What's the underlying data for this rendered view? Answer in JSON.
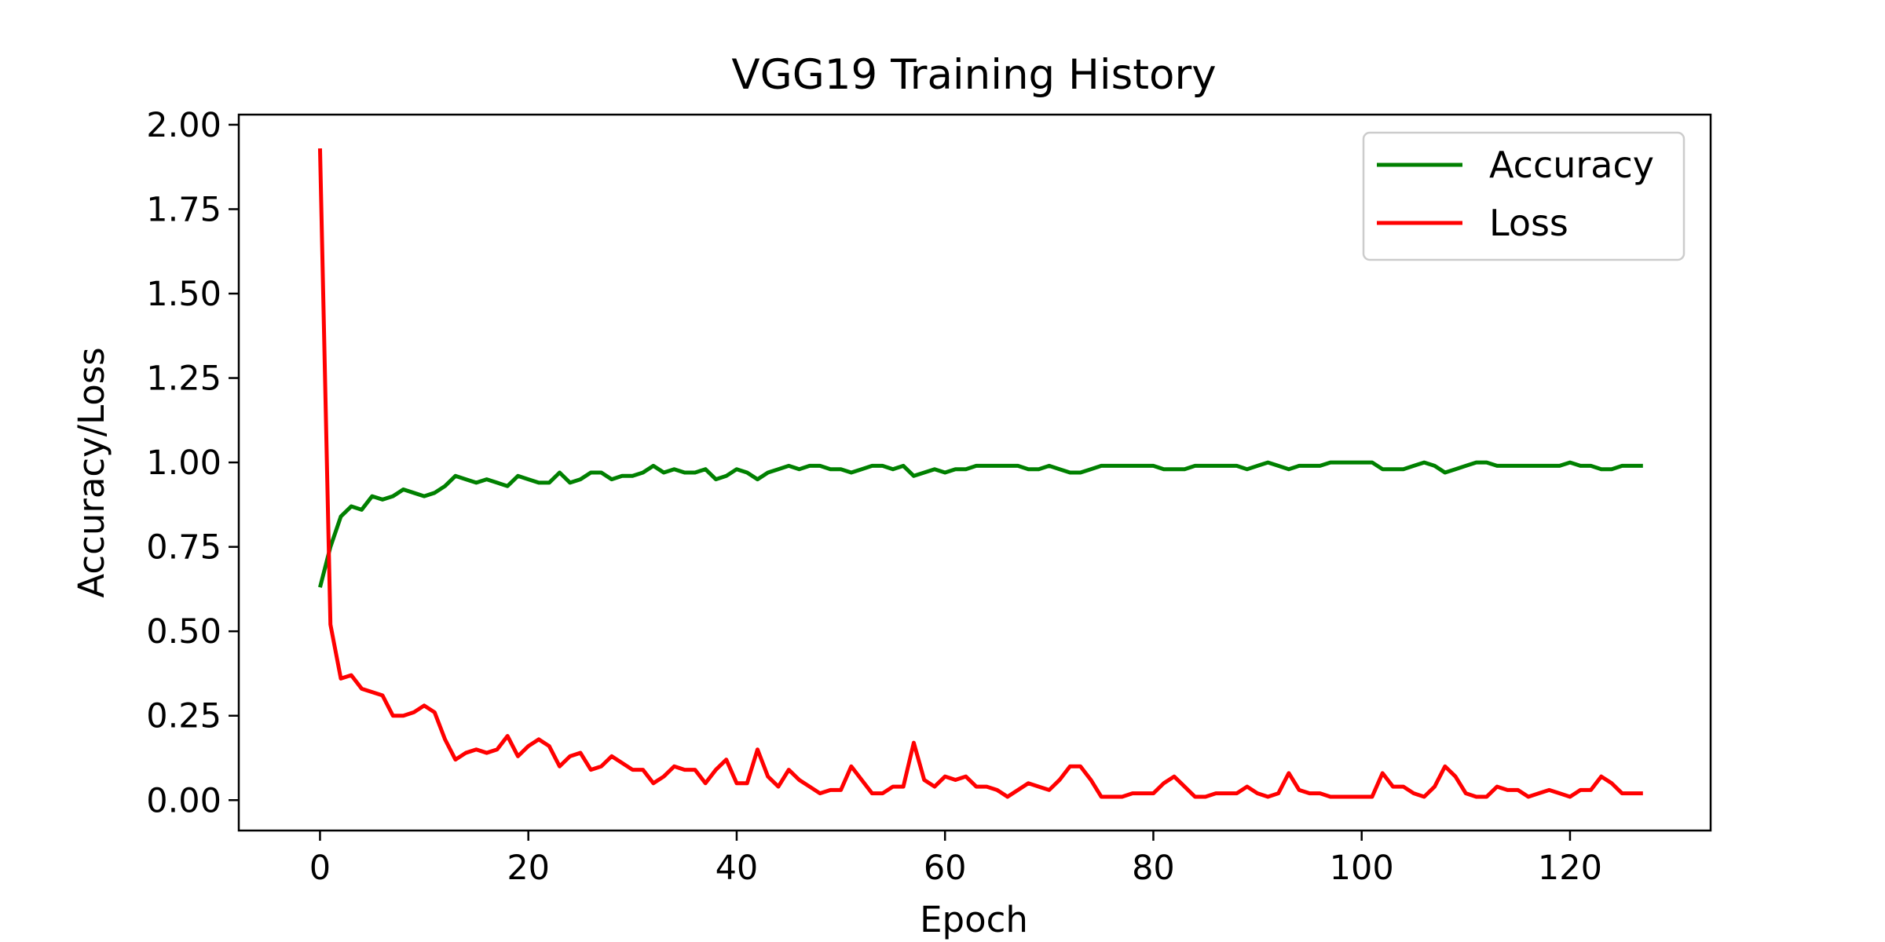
{
  "chart_data": {
    "type": "line",
    "title": "VGG19 Training History",
    "xlabel": "Epoch",
    "ylabel": "Accuracy/Loss",
    "xlim": [
      -7.8,
      133.5
    ],
    "ylim": [
      -0.09,
      2.03
    ],
    "xticks": [
      0,
      20,
      40,
      60,
      80,
      100,
      120
    ],
    "yticks": [
      0.0,
      0.25,
      0.5,
      0.75,
      1.0,
      1.25,
      1.5,
      1.75,
      2.0
    ],
    "xtick_labels": [
      "0",
      "20",
      "40",
      "60",
      "80",
      "100",
      "120"
    ],
    "ytick_labels": [
      "0.00",
      "0.25",
      "0.50",
      "0.75",
      "1.00",
      "1.25",
      "1.50",
      "1.75",
      "2.00"
    ],
    "grid": false,
    "legend_position": "top-right",
    "series": [
      {
        "name": "Accuracy",
        "color": "#008000",
        "values": [
          0.63,
          0.75,
          0.84,
          0.87,
          0.86,
          0.9,
          0.89,
          0.9,
          0.92,
          0.91,
          0.9,
          0.91,
          0.93,
          0.96,
          0.95,
          0.94,
          0.95,
          0.94,
          0.93,
          0.96,
          0.95,
          0.94,
          0.94,
          0.97,
          0.94,
          0.95,
          0.97,
          0.97,
          0.95,
          0.96,
          0.96,
          0.97,
          0.99,
          0.97,
          0.98,
          0.97,
          0.97,
          0.98,
          0.95,
          0.96,
          0.98,
          0.97,
          0.95,
          0.97,
          0.98,
          0.99,
          0.98,
          0.99,
          0.99,
          0.98,
          0.98,
          0.97,
          0.98,
          0.99,
          0.99,
          0.98,
          0.99,
          0.96,
          0.97,
          0.98,
          0.97,
          0.98,
          0.98,
          0.99,
          0.99,
          0.99,
          0.99,
          0.99,
          0.98,
          0.98,
          0.99,
          0.98,
          0.97,
          0.97,
          0.98,
          0.99,
          0.99,
          0.99,
          0.99,
          0.99,
          0.99,
          0.98,
          0.98,
          0.98,
          0.99,
          0.99,
          0.99,
          0.99,
          0.99,
          0.98,
          0.99,
          1.0,
          0.99,
          0.98,
          0.99,
          0.99,
          0.99,
          1.0,
          1.0,
          1.0,
          1.0,
          1.0,
          0.98,
          0.98,
          0.98,
          0.99,
          1.0,
          0.99,
          0.97,
          0.98,
          0.99,
          1.0,
          1.0,
          0.99,
          0.99,
          0.99,
          0.99,
          0.99,
          0.99,
          0.99,
          1.0,
          0.99,
          0.99,
          0.98,
          0.98,
          0.99,
          0.99,
          0.99
        ]
      },
      {
        "name": "Loss",
        "color": "#ff0000",
        "values": [
          1.93,
          0.52,
          0.36,
          0.37,
          0.33,
          0.32,
          0.31,
          0.25,
          0.25,
          0.26,
          0.28,
          0.26,
          0.18,
          0.12,
          0.14,
          0.15,
          0.14,
          0.15,
          0.19,
          0.13,
          0.16,
          0.18,
          0.16,
          0.1,
          0.13,
          0.14,
          0.09,
          0.1,
          0.13,
          0.11,
          0.09,
          0.09,
          0.05,
          0.07,
          0.1,
          0.09,
          0.09,
          0.05,
          0.09,
          0.12,
          0.05,
          0.05,
          0.15,
          0.07,
          0.04,
          0.09,
          0.06,
          0.04,
          0.02,
          0.03,
          0.03,
          0.1,
          0.06,
          0.02,
          0.02,
          0.04,
          0.04,
          0.17,
          0.06,
          0.04,
          0.07,
          0.06,
          0.07,
          0.04,
          0.04,
          0.03,
          0.01,
          0.03,
          0.05,
          0.04,
          0.03,
          0.06,
          0.1,
          0.1,
          0.06,
          0.01,
          0.01,
          0.01,
          0.02,
          0.02,
          0.02,
          0.05,
          0.07,
          0.04,
          0.01,
          0.01,
          0.02,
          0.02,
          0.02,
          0.04,
          0.02,
          0.01,
          0.02,
          0.08,
          0.03,
          0.02,
          0.02,
          0.01,
          0.01,
          0.01,
          0.01,
          0.01,
          0.08,
          0.04,
          0.04,
          0.02,
          0.01,
          0.04,
          0.1,
          0.07,
          0.02,
          0.01,
          0.01,
          0.04,
          0.03,
          0.03,
          0.01,
          0.02,
          0.03,
          0.02,
          0.01,
          0.03,
          0.03,
          0.07,
          0.05,
          0.02,
          0.02,
          0.02
        ]
      }
    ]
  }
}
